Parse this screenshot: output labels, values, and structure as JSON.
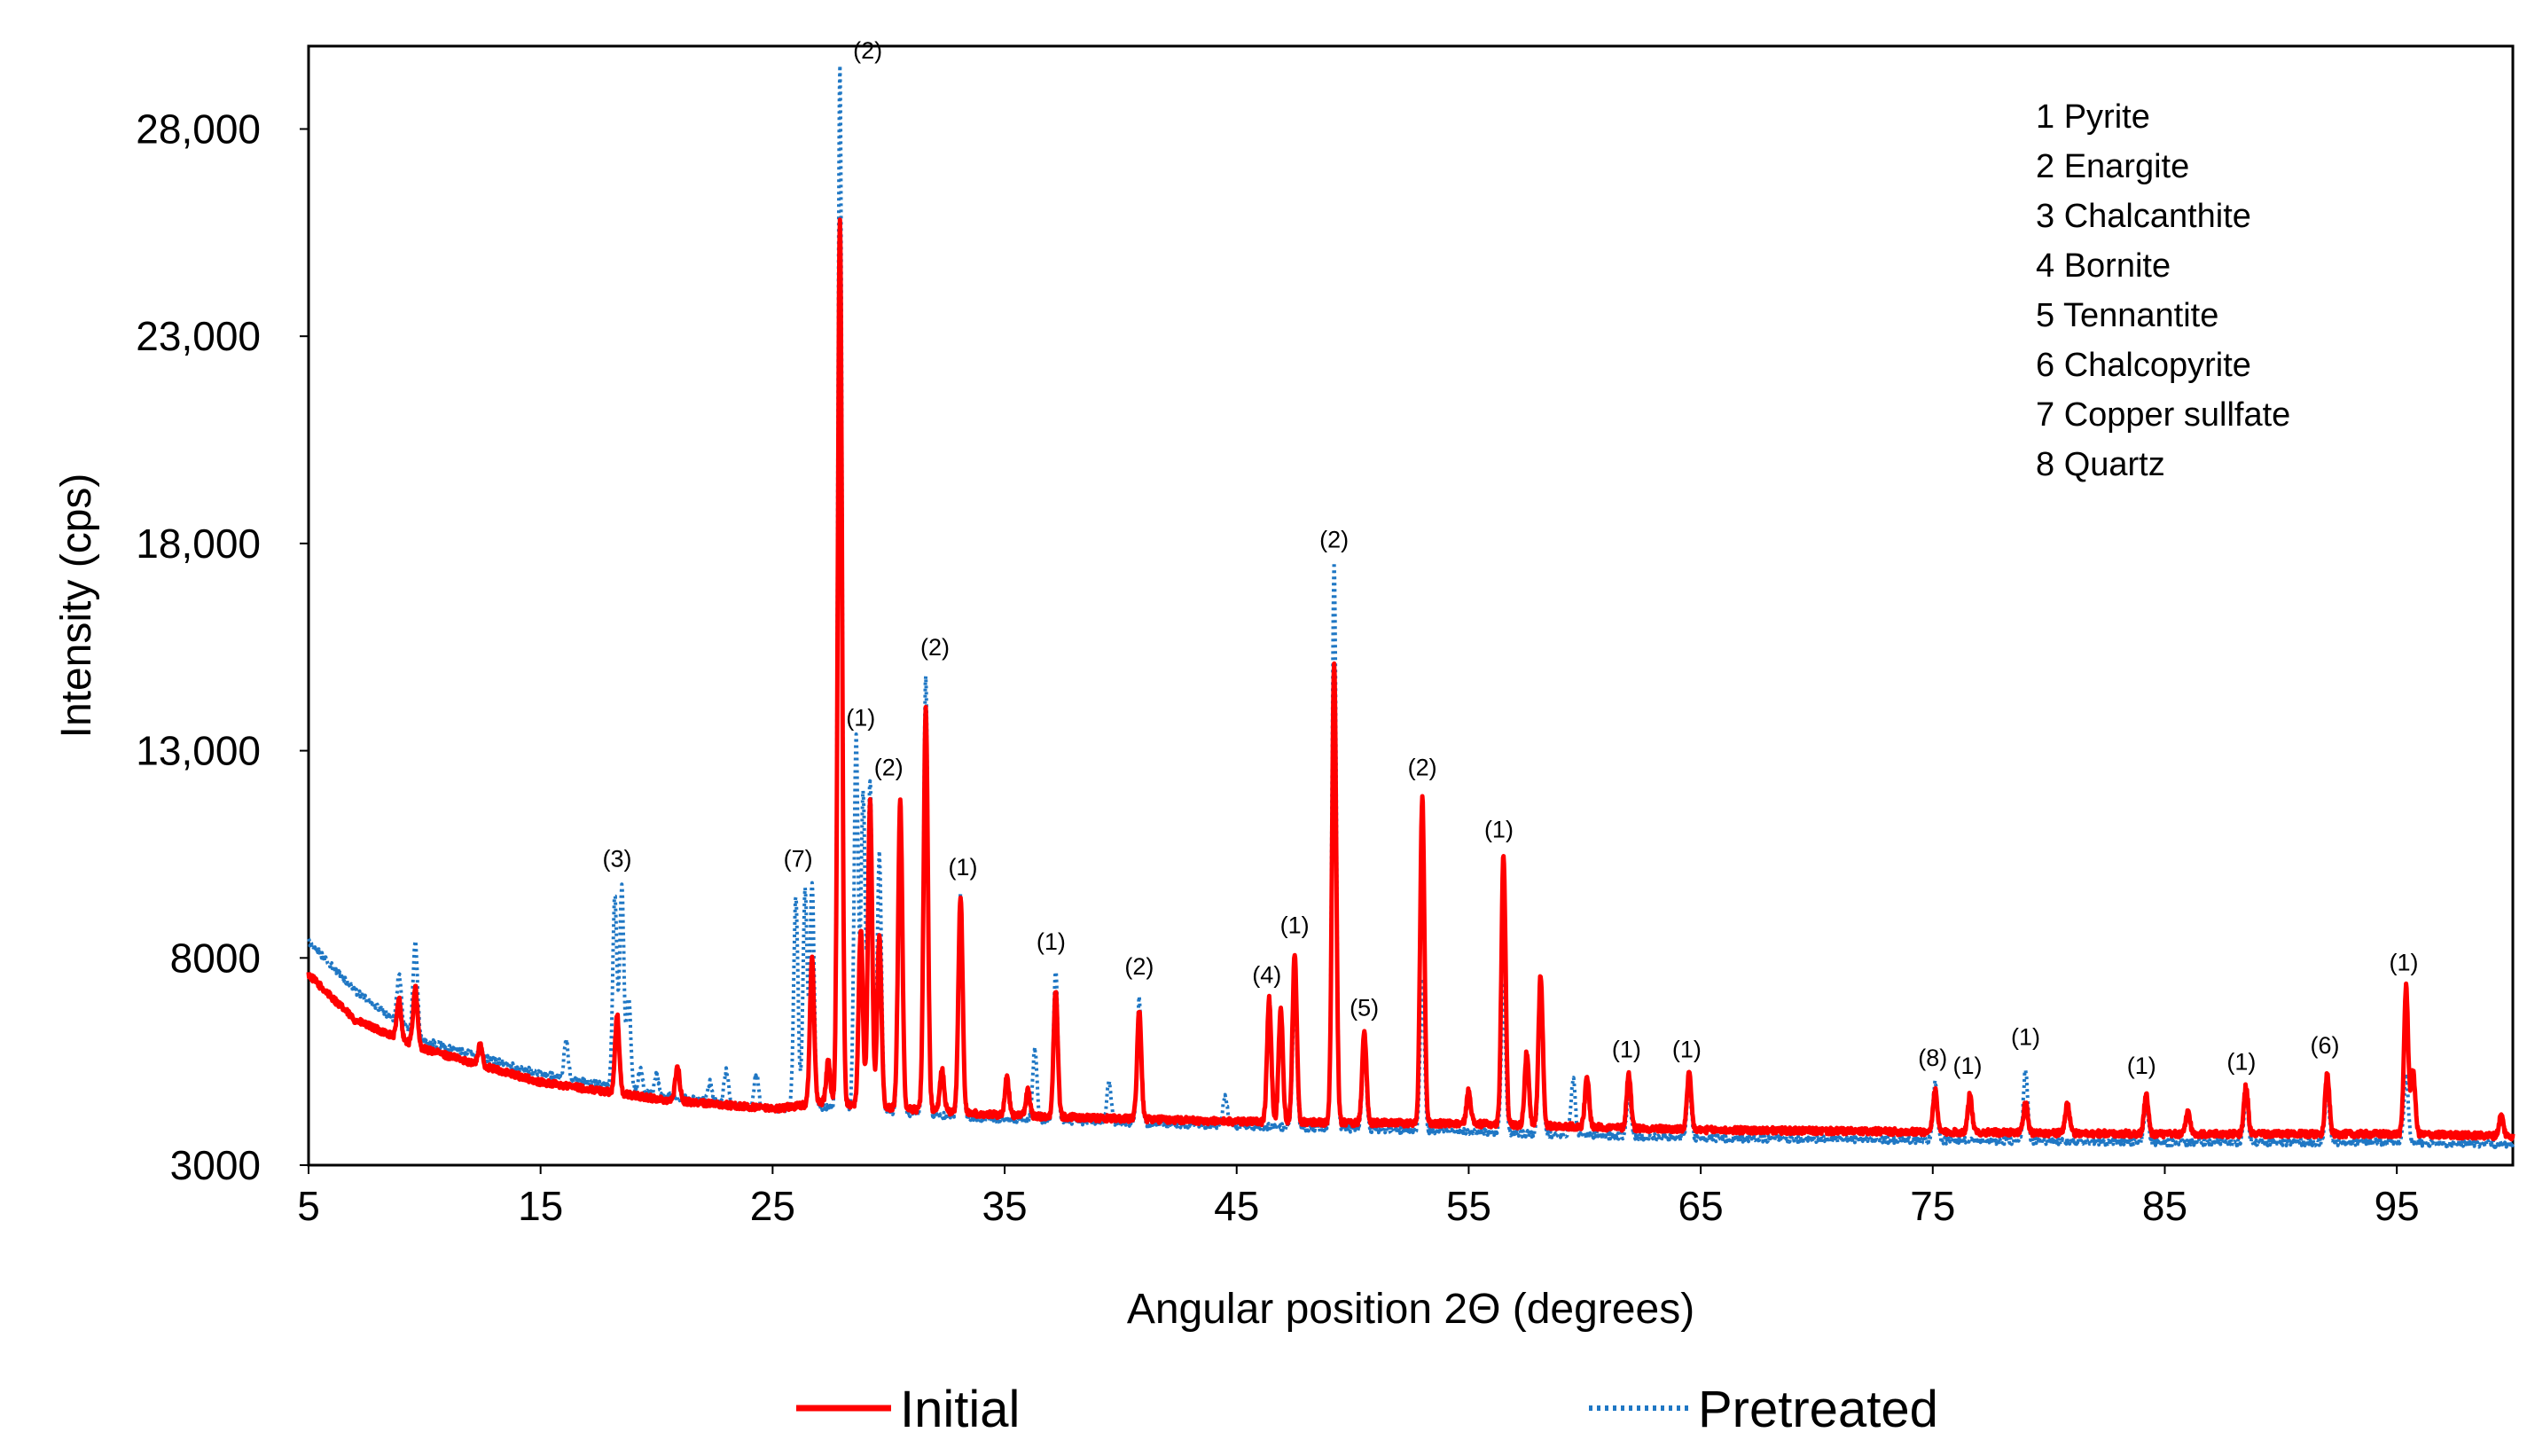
{
  "chart_data": {
    "type": "line",
    "title": "",
    "xlabel": "Angular position 2Θ (degrees)",
    "ylabel": "Intensity  (cps)",
    "xlim": [
      5,
      100
    ],
    "ylim": [
      3000,
      30000
    ],
    "x_ticks": [
      5,
      15,
      25,
      35,
      45,
      55,
      65,
      75,
      85,
      95
    ],
    "y_ticks": [
      3000,
      8000,
      13000,
      18000,
      23000,
      28000
    ],
    "y_tick_labels": [
      "3000",
      "8000",
      "13,000",
      "18,000",
      "23,000",
      "28,000"
    ],
    "grid": false,
    "legend_position": "bottom",
    "series": [
      {
        "name": "Initial",
        "color": "#ff0000",
        "style": "solid",
        "baseline": [
          [
            5,
            7600
          ],
          [
            7,
            6500
          ],
          [
            10,
            5800
          ],
          [
            15,
            5000
          ],
          [
            20,
            4600
          ],
          [
            25,
            4350
          ],
          [
            27,
            4500
          ],
          [
            35,
            4200
          ],
          [
            45,
            4050
          ],
          [
            55,
            4000
          ],
          [
            65,
            3850
          ],
          [
            75,
            3800
          ],
          [
            85,
            3750
          ],
          [
            95,
            3750
          ],
          [
            100,
            3700
          ]
        ],
        "peaks": [
          [
            8.9,
            7000
          ],
          [
            9.6,
            7300
          ],
          [
            12.4,
            5900
          ],
          [
            18.3,
            6600
          ],
          [
            20.9,
            5400
          ],
          [
            26.7,
            8000
          ],
          [
            27.4,
            5500
          ],
          [
            27.9,
            25800
          ],
          [
            28.8,
            8700
          ],
          [
            29.2,
            11800
          ],
          [
            29.6,
            8500
          ],
          [
            30.5,
            11800
          ],
          [
            31.6,
            14000
          ],
          [
            32.3,
            5300
          ],
          [
            33.1,
            9500
          ],
          [
            35.1,
            5100
          ],
          [
            36.0,
            4800
          ],
          [
            37.2,
            7200
          ],
          [
            40.8,
            6700
          ],
          [
            46.4,
            7000
          ],
          [
            46.9,
            6800
          ],
          [
            47.5,
            8100
          ],
          [
            49.2,
            15100
          ],
          [
            50.5,
            6200
          ],
          [
            53.0,
            11900
          ],
          [
            55.0,
            4800
          ],
          [
            56.5,
            10500
          ],
          [
            57.5,
            5700
          ],
          [
            58.1,
            7600
          ],
          [
            60.1,
            5100
          ],
          [
            61.9,
            5200
          ],
          [
            64.5,
            5200
          ],
          [
            75.1,
            4800
          ],
          [
            76.6,
            4700
          ],
          [
            79.0,
            4500
          ],
          [
            80.8,
            4500
          ],
          [
            84.2,
            4700
          ],
          [
            86.0,
            4300
          ],
          [
            88.5,
            4900
          ],
          [
            92.0,
            5200
          ],
          [
            95.4,
            7300
          ],
          [
            95.7,
            5300
          ],
          [
            99.5,
            4200
          ]
        ]
      },
      {
        "name": "Pretreated",
        "color": "#1f77c4",
        "style": "dotted",
        "baseline": [
          [
            5,
            8400
          ],
          [
            7,
            7200
          ],
          [
            10,
            6000
          ],
          [
            15,
            5200
          ],
          [
            20,
            4700
          ],
          [
            25,
            4350
          ],
          [
            27,
            4400
          ],
          [
            35,
            4100
          ],
          [
            45,
            3950
          ],
          [
            55,
            3800
          ],
          [
            65,
            3650
          ],
          [
            75,
            3600
          ],
          [
            85,
            3550
          ],
          [
            95,
            3550
          ],
          [
            100,
            3500
          ]
        ],
        "peaks": [
          [
            8.9,
            7600
          ],
          [
            9.6,
            8400
          ],
          [
            12.4,
            5800
          ],
          [
            16.1,
            6000
          ],
          [
            18.2,
            9500
          ],
          [
            18.5,
            9700
          ],
          [
            18.8,
            7000
          ],
          [
            19.3,
            5300
          ],
          [
            20.0,
            5200
          ],
          [
            22.3,
            5000
          ],
          [
            23.0,
            5300
          ],
          [
            24.3,
            5200
          ],
          [
            26.0,
            9500
          ],
          [
            26.4,
            9600
          ],
          [
            26.7,
            9800
          ],
          [
            27.9,
            29500
          ],
          [
            28.6,
            13300
          ],
          [
            28.9,
            12000
          ],
          [
            29.2,
            12300
          ],
          [
            29.6,
            10500
          ],
          [
            30.5,
            11500
          ],
          [
            31.6,
            14800
          ],
          [
            33.1,
            9500
          ],
          [
            36.3,
            5800
          ],
          [
            37.2,
            7700
          ],
          [
            39.5,
            5000
          ],
          [
            40.8,
            7000
          ],
          [
            44.5,
            4700
          ],
          [
            47.5,
            7300
          ],
          [
            49.2,
            17500
          ],
          [
            50.5,
            5800
          ],
          [
            53.0,
            7500
          ],
          [
            56.5,
            7400
          ],
          [
            58.1,
            7500
          ],
          [
            59.5,
            5100
          ],
          [
            61.9,
            4700
          ],
          [
            64.5,
            5000
          ],
          [
            75.1,
            5000
          ],
          [
            79.0,
            5300
          ],
          [
            84.2,
            4500
          ],
          [
            88.5,
            4600
          ],
          [
            92.0,
            4800
          ],
          [
            95.4,
            5200
          ]
        ]
      }
    ],
    "peak_annotations": [
      {
        "label": "(2)",
        "x": 29.1,
        "y": 29700
      },
      {
        "label": "(1)",
        "x": 28.8,
        "y": 13600
      },
      {
        "label": "(2)",
        "x": 30.0,
        "y": 12400
      },
      {
        "label": "(2)",
        "x": 32.0,
        "y": 15300
      },
      {
        "label": "(1)",
        "x": 33.2,
        "y": 10000
      },
      {
        "label": "(3)",
        "x": 18.3,
        "y": 10200
      },
      {
        "label": "(7)",
        "x": 26.1,
        "y": 10200
      },
      {
        "label": "(1)",
        "x": 37.0,
        "y": 8200
      },
      {
        "label": "(2)",
        "x": 40.8,
        "y": 7600
      },
      {
        "label": "(4)",
        "x": 46.3,
        "y": 7400
      },
      {
        "label": "(1)",
        "x": 47.5,
        "y": 8600
      },
      {
        "label": "(2)",
        "x": 49.2,
        "y": 17900
      },
      {
        "label": "(5)",
        "x": 50.5,
        "y": 6600
      },
      {
        "label": "(2)",
        "x": 53.0,
        "y": 12400
      },
      {
        "label": "(1)",
        "x": 56.3,
        "y": 10900
      },
      {
        "label": "(1)",
        "x": 61.8,
        "y": 5600
      },
      {
        "label": "(1)",
        "x": 64.4,
        "y": 5600
      },
      {
        "label": "(8)",
        "x": 75.0,
        "y": 5400
      },
      {
        "label": "(1)",
        "x": 76.5,
        "y": 5200
      },
      {
        "label": "(1)",
        "x": 79.0,
        "y": 5900
      },
      {
        "label": "(1)",
        "x": 84.0,
        "y": 5200
      },
      {
        "label": "(1)",
        "x": 88.3,
        "y": 5300
      },
      {
        "label": "(6)",
        "x": 91.9,
        "y": 5700
      },
      {
        "label": "(1)",
        "x": 95.3,
        "y": 7700
      }
    ],
    "mineral_key": [
      "1 Pyrite",
      "2 Enargite",
      "3 Chalcanthite",
      "4 Bornite",
      "5 Tennantite",
      "6 Chalcopyrite",
      "7 Copper sullfate",
      "8 Quartz"
    ]
  }
}
